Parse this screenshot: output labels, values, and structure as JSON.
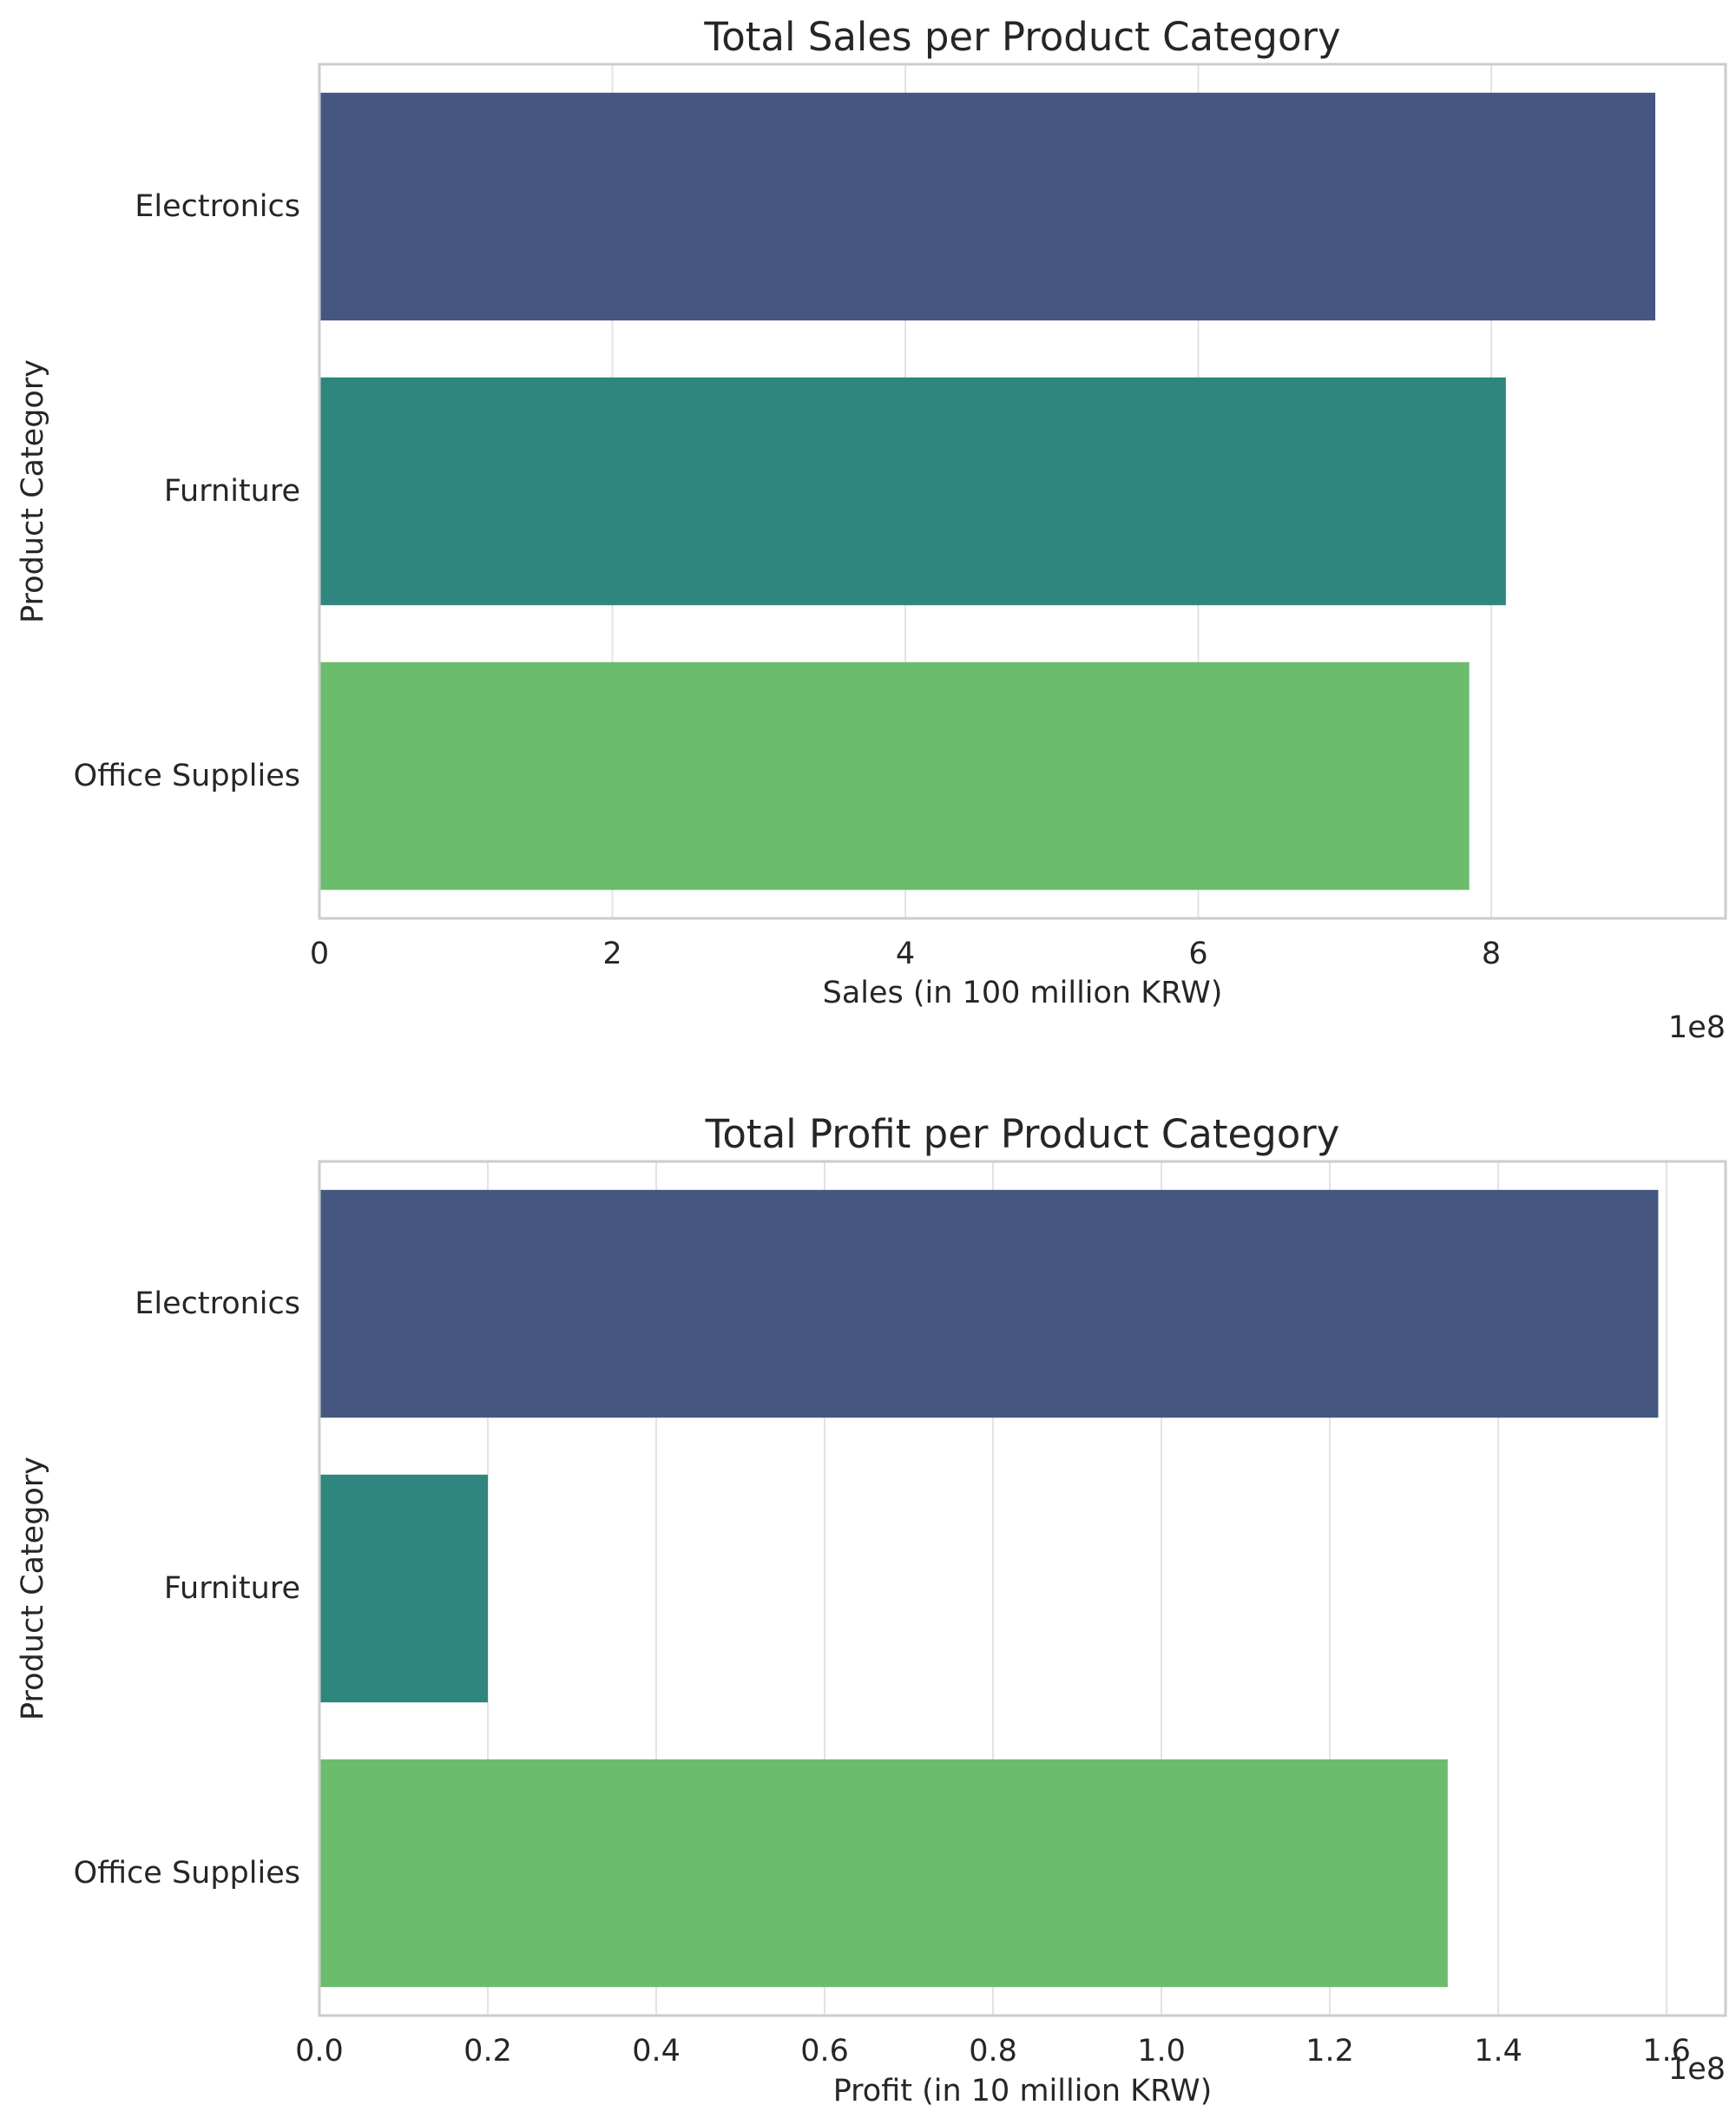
{
  "chart_data": [
    {
      "type": "bar",
      "orientation": "horizontal",
      "title": "Total Sales per Product Category",
      "xlabel": "Sales (in 100 million KRW)",
      "ylabel": "Product Category",
      "categories": [
        "Electronics",
        "Furniture",
        "Office Supplies"
      ],
      "values": [
        912000000,
        810000000,
        785000000
      ],
      "colors": [
        "#455681",
        "#2f867e",
        "#6cbc6d"
      ],
      "xlim": [
        0,
        960000000
      ],
      "xticks": [
        0,
        200000000,
        400000000,
        600000000,
        800000000
      ],
      "xtick_labels": [
        "0",
        "2",
        "4",
        "6",
        "8"
      ],
      "offset_text": "1e8",
      "grid": true
    },
    {
      "type": "bar",
      "orientation": "horizontal",
      "title": "Total Profit per Product Category",
      "xlabel": "Profit (in 10 million KRW)",
      "ylabel": "Product Category",
      "categories": [
        "Electronics",
        "Furniture",
        "Office Supplies"
      ],
      "values": [
        159000000,
        20000000,
        134000000
      ],
      "colors": [
        "#455681",
        "#2f867e",
        "#6cbc6d"
      ],
      "xlim": [
        0,
        167000000
      ],
      "xticks": [
        0,
        20000000,
        40000000,
        60000000,
        80000000,
        100000000,
        120000000,
        140000000,
        160000000
      ],
      "xtick_labels": [
        "0.0",
        "0.2",
        "0.4",
        "0.6",
        "0.8",
        "1.0",
        "1.2",
        "1.4",
        "1.6"
      ],
      "offset_text": "1e8",
      "grid": true
    }
  ]
}
